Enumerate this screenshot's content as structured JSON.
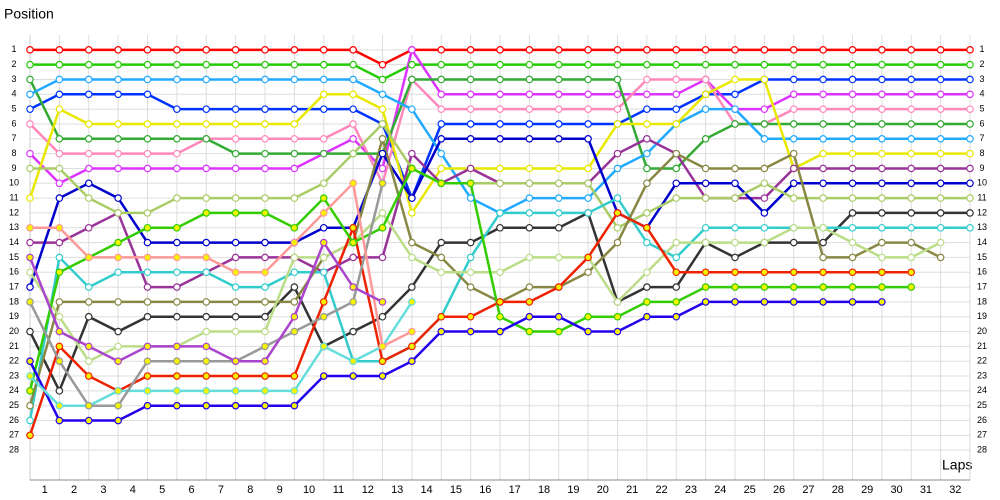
{
  "chart_data": {
    "type": "line",
    "y_axis_label": "Position",
    "x_axis_label": "Laps",
    "x": [
      0,
      1,
      2,
      3,
      4,
      5,
      6,
      7,
      8,
      9,
      10,
      11,
      12,
      13,
      14,
      15,
      16,
      17,
      18,
      19,
      20,
      21,
      22,
      23,
      24,
      25,
      26,
      27,
      28,
      29,
      30,
      31,
      32
    ],
    "xlim": [
      0,
      32
    ],
    "xticks": [
      1,
      2,
      3,
      4,
      5,
      6,
      7,
      8,
      9,
      10,
      11,
      12,
      13,
      14,
      15,
      16,
      17,
      18,
      19,
      20,
      21,
      22,
      23,
      24,
      25,
      26,
      27,
      28,
      29,
      30,
      31,
      32
    ],
    "ylim": [
      29,
      0
    ],
    "yticks": [
      1,
      2,
      3,
      4,
      5,
      6,
      7,
      8,
      9,
      10,
      11,
      12,
      13,
      14,
      15,
      16,
      17,
      18,
      19,
      20,
      21,
      22,
      23,
      24,
      25,
      26,
      27,
      28
    ],
    "grid": true,
    "series": [
      {
        "color": "#ff0000",
        "values": [
          1,
          1,
          1,
          1,
          1,
          1,
          1,
          1,
          1,
          1,
          1,
          1,
          2,
          1,
          1,
          1,
          1,
          1,
          1,
          1,
          1,
          1,
          1,
          1,
          1,
          1,
          1,
          1,
          1,
          1,
          1,
          1,
          1
        ]
      },
      {
        "color": "#22cc00",
        "values": [
          2,
          2,
          2,
          2,
          2,
          2,
          2,
          2,
          2,
          2,
          2,
          2,
          3,
          2,
          2,
          2,
          2,
          2,
          2,
          2,
          2,
          2,
          2,
          2,
          2,
          2,
          2,
          2,
          2,
          2,
          2,
          2,
          2
        ]
      },
      {
        "color": "#0033ff",
        "values": [
          5,
          4,
          4,
          4,
          4,
          5,
          5,
          5,
          5,
          5,
          5,
          5,
          6,
          11,
          6,
          6,
          6,
          6,
          6,
          6,
          6,
          5,
          5,
          4,
          4,
          3,
          3,
          3,
          3,
          3,
          3,
          3,
          3
        ]
      },
      {
        "color": "#dd33ff",
        "values": [
          8,
          10,
          9,
          9,
          9,
          9,
          9,
          9,
          9,
          9,
          8,
          7,
          9,
          1,
          4,
          4,
          4,
          4,
          4,
          4,
          4,
          4,
          4,
          3,
          5,
          5,
          4,
          4,
          4,
          4,
          4,
          4,
          4
        ]
      },
      {
        "color": "#ff88bb",
        "values": [
          6,
          8,
          8,
          8,
          8,
          8,
          7,
          7,
          7,
          7,
          7,
          6,
          10,
          3,
          5,
          5,
          5,
          5,
          5,
          5,
          5,
          3,
          3,
          3,
          6,
          6,
          5,
          5,
          5,
          5,
          5,
          5,
          5
        ]
      },
      {
        "color": "#33aa33",
        "values": [
          3,
          7,
          7,
          7,
          7,
          7,
          7,
          8,
          8,
          8,
          8,
          8,
          8,
          3,
          3,
          3,
          3,
          3,
          3,
          3,
          3,
          9,
          9,
          7,
          6,
          6,
          6,
          6,
          6,
          6,
          6,
          6,
          6
        ]
      },
      {
        "color": "#22aaff",
        "values": [
          4,
          3,
          3,
          3,
          3,
          3,
          3,
          3,
          3,
          3,
          3,
          3,
          4,
          5,
          8,
          11,
          12,
          11,
          11,
          11,
          9,
          8,
          6,
          5,
          5,
          7,
          7,
          7,
          7,
          7,
          7,
          7,
          7
        ]
      },
      {
        "color": "#e8e800",
        "values": [
          11,
          5,
          6,
          6,
          6,
          6,
          6,
          6,
          6,
          6,
          4,
          4,
          5,
          12,
          9,
          9,
          9,
          9,
          9,
          9,
          6,
          6,
          6,
          4,
          3,
          3,
          9,
          8,
          8,
          8,
          8,
          8,
          8
        ]
      },
      {
        "color": "#993399",
        "values": [
          14,
          14,
          13,
          12,
          17,
          17,
          16,
          15,
          15,
          15,
          16,
          15,
          15,
          8,
          10,
          9,
          10,
          10,
          10,
          10,
          8,
          7,
          8,
          11,
          11,
          11,
          9,
          9,
          9,
          9,
          9,
          9,
          9
        ]
      },
      {
        "color": "#0000cc",
        "values": [
          17,
          11,
          10,
          11,
          14,
          14,
          14,
          14,
          14,
          14,
          13,
          13,
          8,
          11,
          7,
          7,
          7,
          7,
          7,
          7,
          12,
          13,
          10,
          10,
          10,
          12,
          10,
          10,
          10,
          10,
          10,
          10,
          10
        ]
      },
      {
        "color": "#aacc66",
        "values": [
          9,
          9,
          11,
          12,
          12,
          11,
          11,
          11,
          11,
          11,
          10,
          8,
          6,
          9,
          10,
          10,
          10,
          10,
          10,
          10,
          13,
          12,
          11,
          11,
          11,
          10,
          11,
          11,
          11,
          11,
          11,
          11,
          11
        ]
      },
      {
        "color": "#333333",
        "values": [
          20,
          24,
          19,
          20,
          19,
          19,
          19,
          19,
          19,
          17,
          21,
          20,
          19,
          17,
          14,
          14,
          13,
          13,
          13,
          12,
          18,
          17,
          17,
          14,
          15,
          14,
          14,
          14,
          12,
          12,
          12,
          12,
          12
        ]
      },
      {
        "color": "#33cccc",
        "values": [
          26,
          15,
          17,
          16,
          16,
          16,
          16,
          17,
          17,
          16,
          16,
          22,
          22,
          21,
          19,
          15,
          12,
          12,
          12,
          12,
          11,
          14,
          15,
          13,
          13,
          13,
          13,
          13,
          13,
          13,
          13,
          13,
          13
        ]
      },
      {
        "color": "#888844",
        "values": [
          25,
          18,
          18,
          18,
          18,
          18,
          18,
          18,
          18,
          18,
          15,
          14,
          7,
          14,
          15,
          17,
          18,
          17,
          17,
          16,
          14,
          10,
          8,
          9,
          9,
          9,
          8,
          15,
          15,
          14,
          14,
          15,
          null
        ]
      },
      {
        "color": "#bbdd88",
        "values": [
          16,
          19,
          22,
          21,
          21,
          21,
          20,
          20,
          20,
          15,
          15,
          14,
          12,
          15,
          16,
          16,
          16,
          15,
          15,
          15,
          18,
          16,
          14,
          14,
          14,
          14,
          13,
          13,
          14,
          15,
          15,
          14,
          null
        ]
      },
      {
        "color": "#ee2200",
        "values": [
          27,
          21,
          23,
          24,
          23,
          23,
          23,
          23,
          23,
          23,
          18,
          13,
          22,
          21,
          19,
          19,
          18,
          18,
          17,
          15,
          12,
          13,
          16,
          16,
          16,
          16,
          16,
          16,
          16,
          16,
          16,
          null,
          null
        ]
      },
      {
        "color": "#33cc00",
        "values": [
          24,
          16,
          15,
          14,
          13,
          13,
          12,
          12,
          12,
          13,
          11,
          14,
          13,
          9,
          10,
          10,
          19,
          20,
          20,
          19,
          19,
          18,
          18,
          17,
          17,
          17,
          17,
          17,
          17,
          17,
          17,
          null,
          null
        ]
      },
      {
        "color": "#2200ee",
        "values": [
          22,
          26,
          26,
          26,
          25,
          25,
          25,
          25,
          25,
          25,
          23,
          23,
          23,
          22,
          20,
          20,
          20,
          19,
          19,
          20,
          20,
          19,
          19,
          18,
          18,
          18,
          18,
          18,
          18,
          18,
          null,
          null,
          null
        ]
      },
      {
        "color": "#66dddd",
        "values": [
          23,
          25,
          25,
          24,
          24,
          24,
          24,
          24,
          24,
          24,
          21,
          22,
          21,
          18,
          null,
          null,
          null,
          null,
          null,
          null,
          null,
          null,
          null,
          null,
          null,
          null,
          null,
          null,
          null,
          null,
          null,
          null,
          null
        ]
      },
      {
        "color": "#999999",
        "values": [
          18,
          22,
          25,
          25,
          22,
          22,
          22,
          22,
          21,
          20,
          19,
          18,
          10,
          null,
          null,
          null,
          null,
          null,
          null,
          null,
          null,
          null,
          null,
          null,
          null,
          null,
          null,
          null,
          null,
          null,
          null,
          null,
          null
        ]
      },
      {
        "color": "#ff9999",
        "values": [
          13,
          13,
          15,
          15,
          15,
          15,
          15,
          16,
          16,
          14,
          12,
          10,
          21,
          20,
          null,
          null,
          null,
          null,
          null,
          null,
          null,
          null,
          null,
          null,
          null,
          null,
          null,
          null,
          null,
          null,
          null,
          null,
          null
        ]
      },
      {
        "color": "#aa44cc",
        "values": [
          15,
          20,
          21,
          22,
          21,
          21,
          21,
          22,
          22,
          19,
          14,
          17,
          18,
          null,
          null,
          null,
          null,
          null,
          null,
          null,
          null,
          null,
          null,
          null,
          null,
          null,
          null,
          null,
          null,
          null,
          null,
          null,
          null
        ]
      }
    ]
  }
}
